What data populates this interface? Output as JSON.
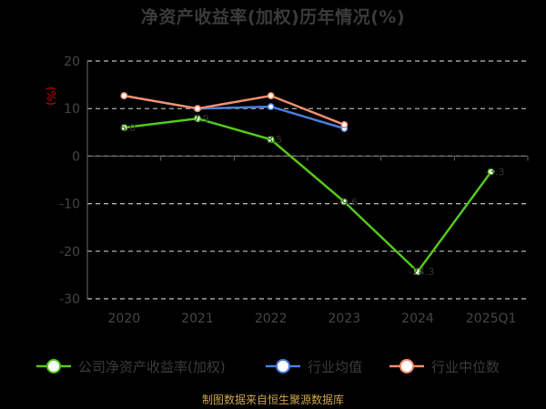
{
  "title": "净资产收益率(加权)历年情况(%)",
  "source": "制图数据来自恒生聚源数据库",
  "colors": {
    "background": "#000000",
    "grid": "#bbbbbb",
    "axis": "#666666",
    "text": "#444444",
    "source_text": "#c9a24a",
    "unit_text": "#cc0000"
  },
  "chart_data": {
    "type": "line",
    "categories": [
      "2020",
      "2021",
      "2022",
      "2023",
      "2024",
      "2025Q1"
    ],
    "ylim": [
      -30,
      20
    ],
    "yticks": [
      20,
      10,
      0,
      -10,
      -20,
      -30
    ],
    "y_unit": "(%)",
    "grid": true,
    "legend_position": "bottom",
    "series": [
      {
        "name": "公司净资产收益率(加权)",
        "color": "#52c41a",
        "values": [
          6.0,
          7.9,
          3.5,
          -9.6,
          -24.3,
          -3.3
        ],
        "labels": [
          "6.0",
          "7.9",
          "3.5",
          "-9.6",
          "-24.3",
          "-3.3"
        ]
      },
      {
        "name": "行业均值",
        "color": "#4a7bd8",
        "values": [
          12.7,
          10.0,
          10.4,
          5.8,
          null,
          null
        ]
      },
      {
        "name": "行业中位数",
        "color": "#f08c6b",
        "values": [
          12.7,
          10.0,
          12.7,
          6.6,
          null,
          null
        ]
      }
    ]
  }
}
